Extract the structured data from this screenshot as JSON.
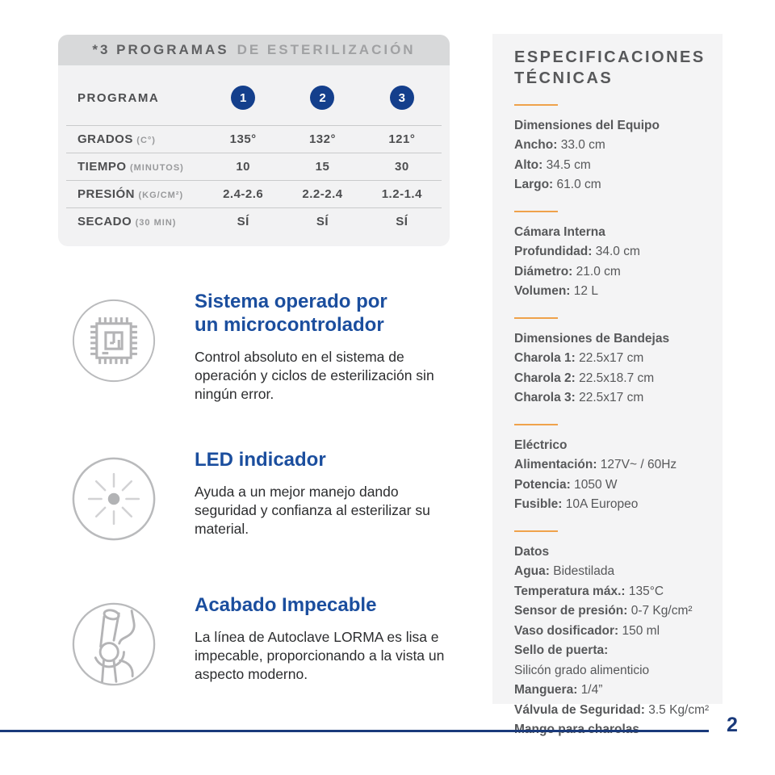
{
  "page": {
    "number": "2"
  },
  "colors": {
    "navy": "#143f8c",
    "accent_blue": "#1b4e9e",
    "orange": "#efa24b",
    "panel_gray": "#f4f4f5",
    "header_gray": "#d8d9da"
  },
  "programs": {
    "header_strong": "*3 PROGRAMAS",
    "header_light": "DE ESTERILIZACIÓN",
    "row_header_label": "PROGRAMA",
    "program_numbers": [
      "1",
      "2",
      "3"
    ],
    "rows": [
      {
        "label": "GRADOS",
        "sub": "(C°)",
        "values": [
          "135°",
          "132°",
          "121°"
        ]
      },
      {
        "label": "TIEMPO",
        "sub": "(MINUTOS)",
        "values": [
          "10",
          "15",
          "30"
        ]
      },
      {
        "label": "PRESIÓN",
        "sub": "(KG/CM²)",
        "values": [
          "2.4-2.6",
          "2.2-2.4",
          "1.2-1.4"
        ]
      },
      {
        "label": "SECADO",
        "sub": "(30 MIN)",
        "values": [
          "SÍ",
          "SÍ",
          "SÍ"
        ]
      }
    ]
  },
  "features": [
    {
      "icon": "microchip-icon",
      "title": "Sistema operado por\nun microcontrolador",
      "body": "Control absoluto en el sistema de operación y ciclos de esterilización sin ningún error."
    },
    {
      "icon": "led-indicator-icon",
      "title": "LED indicador",
      "body": "Ayuda a un mejor manejo dando seguridad y confianza al esterilizar su material."
    },
    {
      "icon": "smooth-finish-joint-icon",
      "title": "Acabado Impecable",
      "body": "La línea de Autoclave LORMA es lisa e impecable, proporcionando a la vista un aspecto moderno."
    }
  ],
  "specs": {
    "title": "ESPECIFICACIONES\nTÉCNICAS",
    "sections": [
      {
        "heading": "Dimensiones del Equipo",
        "items": [
          {
            "label": "Ancho:",
            "value": "33.0 cm"
          },
          {
            "label": "Alto:",
            "value": "34.5 cm"
          },
          {
            "label": "Largo:",
            "value": "61.0 cm"
          }
        ]
      },
      {
        "heading": "Cámara Interna",
        "items": [
          {
            "label": "Profundidad:",
            "value": "34.0 cm"
          },
          {
            "label": "Diámetro:",
            "value": "21.0 cm"
          },
          {
            "label": "Volumen:",
            "value": "12 L"
          }
        ]
      },
      {
        "heading": "Dimensiones de Bandejas",
        "items": [
          {
            "label": "Charola 1:",
            "value": "22.5x17 cm"
          },
          {
            "label": "Charola 2:",
            "value": "22.5x18.7 cm"
          },
          {
            "label": "Charola 3:",
            "value": "22.5x17 cm"
          }
        ]
      },
      {
        "heading": "Eléctrico",
        "items": [
          {
            "label": "Alimentación:",
            "value": "127V~ / 60Hz"
          },
          {
            "label": "Potencia:",
            "value": "1050 W"
          },
          {
            "label": "Fusible:",
            "value": "10A Europeo"
          }
        ]
      },
      {
        "heading": "Datos",
        "items": [
          {
            "label": "Agua:",
            "value": "Bidestilada"
          },
          {
            "label": "Temperatura máx.:",
            "value": "135°C"
          },
          {
            "label": "Sensor de presión:",
            "value": "0-7 Kg/cm²"
          },
          {
            "label": "Vaso dosificador:",
            "value": "150 ml"
          },
          {
            "label": "Sello de puerta:",
            "value": ""
          },
          {
            "label": "",
            "value": "Silicón grado alimenticio"
          },
          {
            "label": "Manguera:",
            "value": "1/4”"
          },
          {
            "label": "Válvula de Seguridad:",
            "value": "3.5 Kg/cm²"
          },
          {
            "label": "Mango para charolas",
            "value": ""
          }
        ]
      }
    ]
  }
}
